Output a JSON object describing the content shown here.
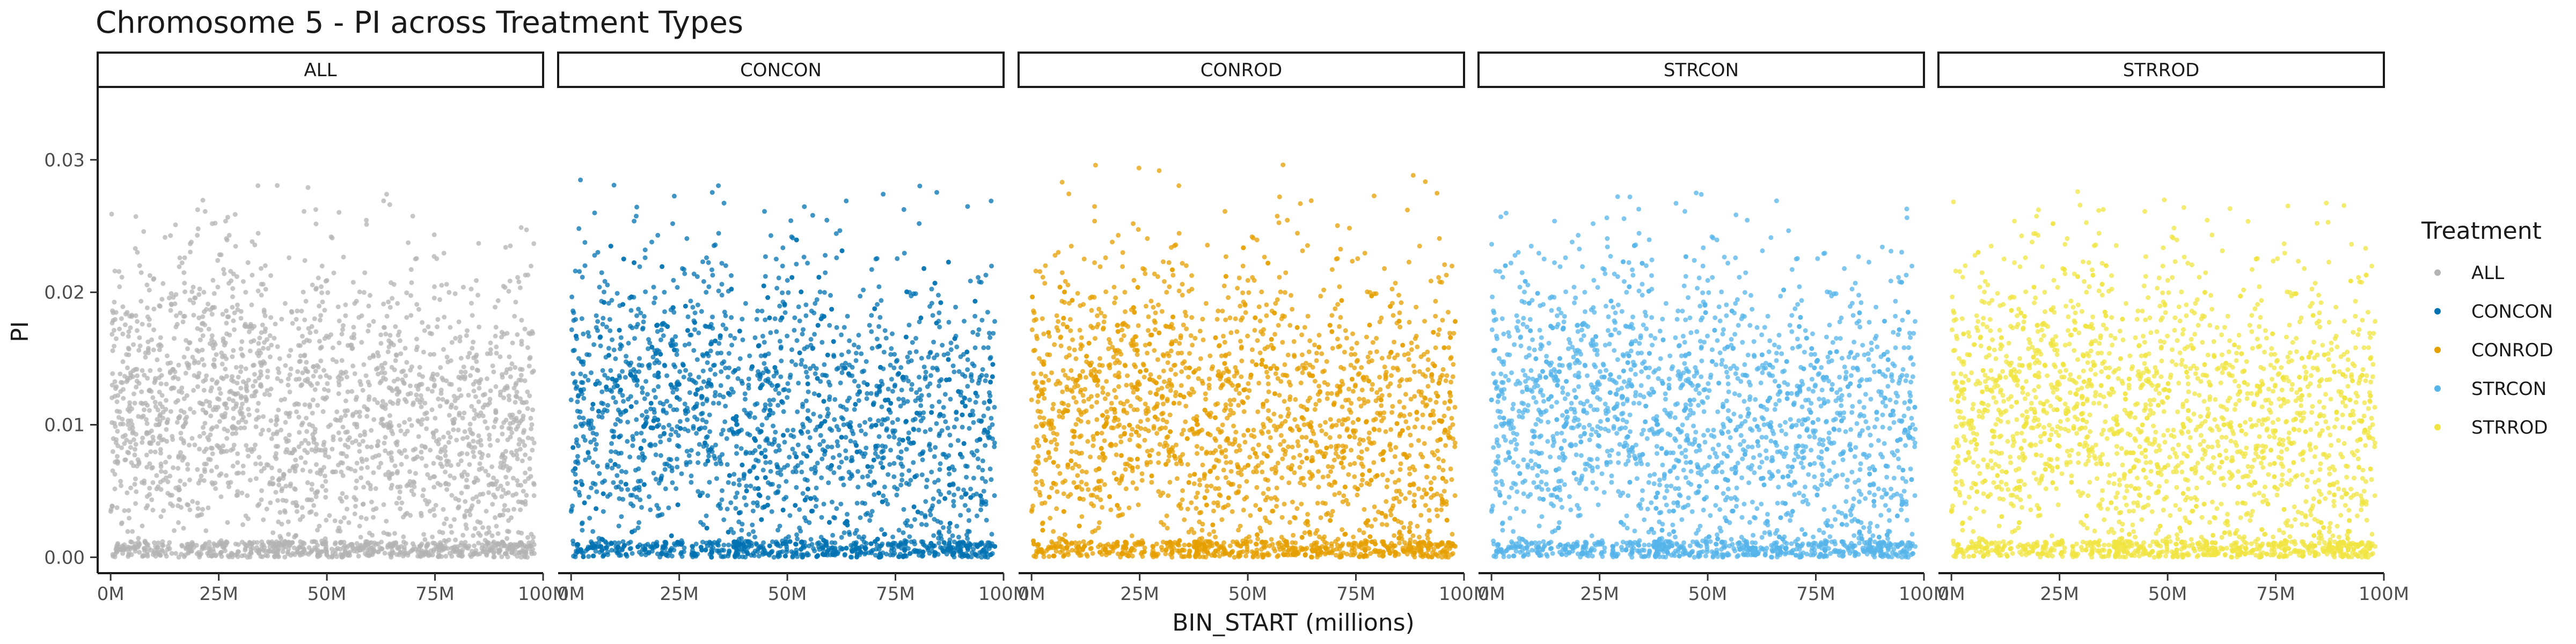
{
  "chart_data": {
    "type": "scatter",
    "title": "Chromosome 5 - PI across Treatment Types",
    "xlabel": "BIN_START (millions)",
    "ylabel": "PI",
    "xlim": [
      -3,
      100
    ],
    "ylim": [
      -0.0012,
      0.0355
    ],
    "x_ticks": [
      0,
      25,
      50,
      75,
      100
    ],
    "x_tick_labels": [
      "0M",
      "25M",
      "50M",
      "75M",
      "100M"
    ],
    "y_ticks": [
      0.0,
      0.01,
      0.02,
      0.03
    ],
    "y_tick_labels": [
      "0.00",
      "0.01",
      "0.02",
      "0.03"
    ],
    "facets": [
      "ALL",
      "CONCON",
      "CONROD",
      "STRCON",
      "STRROD"
    ],
    "legend": {
      "title": "Treatment",
      "position": "right"
    },
    "grid": false,
    "series": [
      {
        "name": "ALL",
        "color": "#B3B3B3",
        "x_range": [
          0,
          98
        ],
        "y_max": 0.0282,
        "density_profile": [
          [
            0,
            0.011
          ],
          [
            20,
            0.012
          ],
          [
            36,
            0.013
          ],
          [
            40,
            0.005
          ],
          [
            45,
            0.012
          ],
          [
            55,
            0.011
          ],
          [
            70,
            0.01
          ],
          [
            85,
            0.01
          ],
          [
            98,
            0.009
          ]
        ]
      },
      {
        "name": "CONCON",
        "color": "#0072B2",
        "x_range": [
          0,
          98
        ],
        "y_max": 0.0285,
        "density_profile": [
          [
            0,
            0.011
          ],
          [
            20,
            0.012
          ],
          [
            36,
            0.013
          ],
          [
            40,
            0.005
          ],
          [
            45,
            0.012
          ],
          [
            55,
            0.011
          ],
          [
            70,
            0.01
          ],
          [
            85,
            0.01
          ],
          [
            98,
            0.009
          ]
        ]
      },
      {
        "name": "CONROD",
        "color": "#E69F00",
        "x_range": [
          0,
          98
        ],
        "y_max": 0.0299,
        "density_profile": [
          [
            0,
            0.011
          ],
          [
            20,
            0.012
          ],
          [
            36,
            0.013
          ],
          [
            40,
            0.005
          ],
          [
            45,
            0.012
          ],
          [
            55,
            0.011
          ],
          [
            70,
            0.01
          ],
          [
            85,
            0.01
          ],
          [
            98,
            0.009
          ]
        ]
      },
      {
        "name": "STRCON",
        "color": "#56B4E9",
        "x_range": [
          0,
          98
        ],
        "y_max": 0.0277,
        "density_profile": [
          [
            0,
            0.011
          ],
          [
            20,
            0.012
          ],
          [
            36,
            0.013
          ],
          [
            40,
            0.005
          ],
          [
            45,
            0.012
          ],
          [
            55,
            0.011
          ],
          [
            70,
            0.01
          ],
          [
            85,
            0.01
          ],
          [
            98,
            0.009
          ]
        ]
      },
      {
        "name": "STRROD",
        "color": "#F0E442",
        "x_range": [
          0,
          98
        ],
        "y_max": 0.0276,
        "density_profile": [
          [
            0,
            0.011
          ],
          [
            20,
            0.012
          ],
          [
            36,
            0.013
          ],
          [
            40,
            0.005
          ],
          [
            45,
            0.012
          ],
          [
            55,
            0.011
          ],
          [
            70,
            0.01
          ],
          [
            85,
            0.01
          ],
          [
            98,
            0.009
          ]
        ]
      }
    ]
  }
}
